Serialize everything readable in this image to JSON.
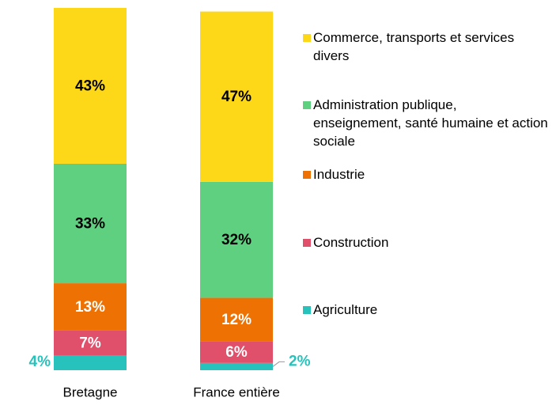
{
  "chart_data": {
    "type": "bar",
    "stacked": true,
    "categories": [
      "Bretagne",
      "France entière"
    ],
    "series": [
      {
        "name": "Agriculture",
        "color": "#26c2bb",
        "label_color": "#26c2bb",
        "values": [
          4,
          2
        ],
        "value_labels": [
          "4%",
          "2%"
        ]
      },
      {
        "name": "Construction",
        "color": "#e0506b",
        "label_color": "#ffffff",
        "values": [
          7,
          6
        ],
        "value_labels": [
          "7%",
          "6%"
        ]
      },
      {
        "name": "Industrie",
        "color": "#ee7203",
        "label_color": "#ffffff",
        "values": [
          13,
          12
        ],
        "value_labels": [
          "13%",
          "12%"
        ]
      },
      {
        "name": "Administration publique, enseignement, santé humaine et action sociale",
        "color": "#5fcf80",
        "label_color": "#000000",
        "values": [
          33,
          32
        ],
        "value_labels": [
          "33%",
          "32%"
        ]
      },
      {
        "name": "Commerce, transports et services divers",
        "color": "#fdd819",
        "label_color": "#000000",
        "values": [
          43,
          47
        ],
        "value_labels": [
          "43%",
          "47%"
        ]
      }
    ]
  }
}
